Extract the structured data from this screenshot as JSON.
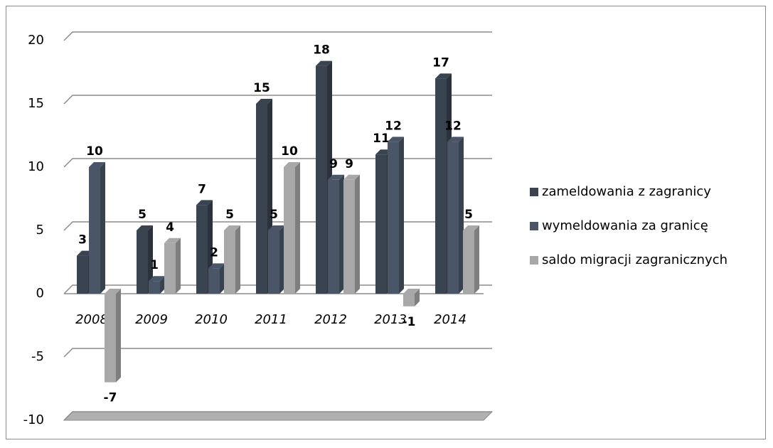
{
  "chart_data": {
    "type": "bar",
    "categories": [
      "2008",
      "2009",
      "2010",
      "2011",
      "2012",
      "2013",
      "2014"
    ],
    "series": [
      {
        "name": "zameldowania z zagranicy",
        "color": "#3a4350",
        "values": [
          3,
          5,
          7,
          15,
          18,
          11,
          17
        ]
      },
      {
        "name": "wymeldowania za granicę",
        "color": "#4a5668",
        "values": [
          10,
          1,
          2,
          5,
          9,
          12,
          12
        ]
      },
      {
        "name": "saldo migracji zagranicznych",
        "color": "#a8a8a8",
        "values": [
          -7,
          4,
          5,
          10,
          9,
          -1,
          5
        ]
      }
    ],
    "ylim": [
      -10,
      20
    ],
    "yticks": [
      -10,
      -5,
      0,
      5,
      10,
      15,
      20
    ],
    "grid": true,
    "legend": "right"
  }
}
